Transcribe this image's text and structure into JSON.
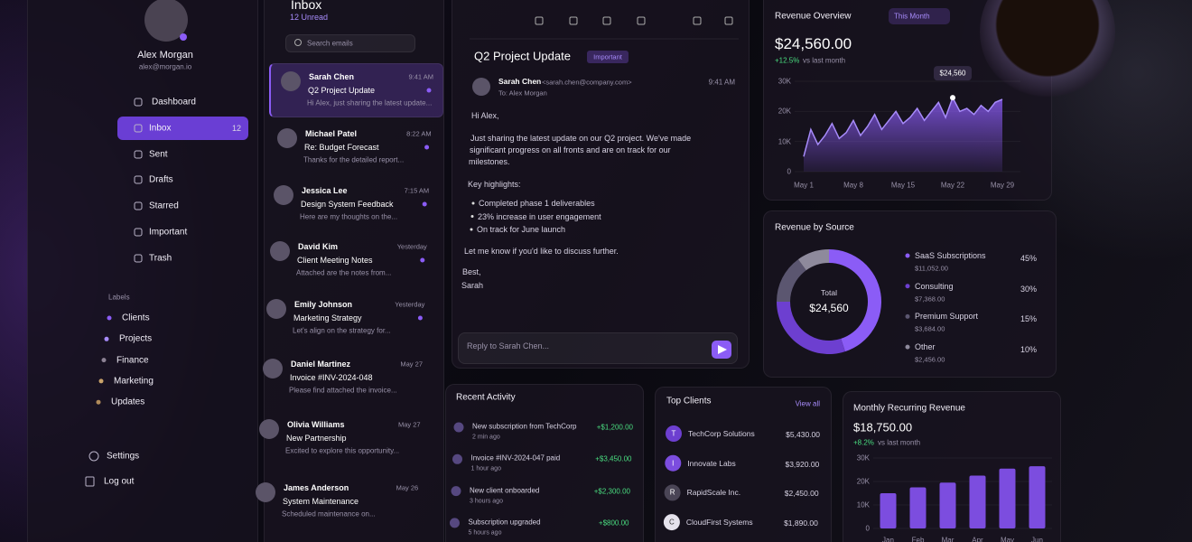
{
  "user": {
    "name": "Alex Morgan",
    "email": "alex@morgan.io"
  },
  "nav": [
    {
      "label": "Dashboard"
    },
    {
      "label": "Inbox",
      "badge": 12
    },
    {
      "label": "Sent"
    },
    {
      "label": "Drafts"
    },
    {
      "label": "Starred"
    },
    {
      "label": "Important"
    },
    {
      "label": "Trash"
    }
  ],
  "labels": {
    "title": "Labels",
    "items": [
      "Clients",
      "Projects",
      "Finance",
      "Marketing",
      "Updates"
    ],
    "colors": [
      "#8b5cf6",
      "#a78bfa",
      "#8c8294",
      "#c9a36a",
      "#b08a5a"
    ]
  },
  "account": [
    "Settings",
    "Log out"
  ],
  "inbox": {
    "title": "Inbox",
    "unread": "12 Unread",
    "search": "Search emails",
    "emails": [
      {
        "sender": "Sarah Chen",
        "time": "9:41 AM",
        "subject": "Q2 Project Update",
        "preview": "Hi Alex, just sharing the latest update...",
        "unread": true
      },
      {
        "sender": "Michael Patel",
        "time": "8:22 AM",
        "subject": "Re: Budget Forecast",
        "preview": "Thanks for the detailed report...",
        "unread": true
      },
      {
        "sender": "Jessica Lee",
        "time": "7:15 AM",
        "subject": "Design System Feedback",
        "preview": "Here are my thoughts on the...",
        "unread": true
      },
      {
        "sender": "David Kim",
        "time": "Yesterday",
        "subject": "Client Meeting Notes",
        "preview": "Attached are the notes from...",
        "unread": true
      },
      {
        "sender": "Emily Johnson",
        "time": "Yesterday",
        "subject": "Marketing Strategy",
        "preview": "Let's align on the strategy for...",
        "unread": true
      },
      {
        "sender": "Daniel Martinez",
        "time": "May 27",
        "subject": "Invoice #INV-2024-048",
        "preview": "Please find attached the invoice...",
        "unread": false
      },
      {
        "sender": "Olivia Williams",
        "time": "May 27",
        "subject": "New Partnership",
        "preview": "Excited to explore this opportunity...",
        "unread": false
      },
      {
        "sender": "James Anderson",
        "time": "May 26",
        "subject": "System Maintenance",
        "preview": "Scheduled maintenance on...",
        "unread": false
      }
    ]
  },
  "email": {
    "subject": "Q2 Project Update",
    "tag": "Important",
    "sender": "Sarah Chen",
    "address": "<sarah.chen@company.com>",
    "to": "To: Alex Morgan",
    "time": "9:41 AM",
    "greeting": "Hi Alex,",
    "paragraph": [
      "Just sharing the latest update on our Q2 project. We've made",
      "significant progress on all fronts and are on track for our",
      "milestones."
    ],
    "highlights_title": "Key highlights:",
    "highlights": [
      "Completed phase 1 deliverables",
      "23% increase in user engagement",
      "On track for June launch"
    ],
    "closing": "Let me know if you'd like to discuss further.",
    "signoff": "Best,",
    "signature": "Sarah",
    "reply": "Reply to Sarah Chen..."
  },
  "chart_data": [
    {
      "type": "line",
      "title": "Revenue Overview",
      "period": "This Month",
      "total": "$24,560.00",
      "change": "+12.5%",
      "change_note": "vs last month",
      "categories": [
        "May 1",
        null,
        null,
        null,
        null,
        null,
        null,
        "May 8",
        null,
        null,
        null,
        null,
        null,
        null,
        "May 15",
        null,
        null,
        null,
        null,
        null,
        null,
        "May 22",
        null,
        null,
        null,
        null,
        null,
        null,
        "May 29"
      ],
      "values": [
        5000,
        14000,
        9000,
        12000,
        16000,
        11000,
        13000,
        17000,
        12000,
        15000,
        19000,
        14000,
        17000,
        20000,
        16000,
        18000,
        21000,
        17000,
        20000,
        23000,
        18000,
        24560,
        20000,
        21000,
        19000,
        22000,
        20000,
        23000,
        24000
      ],
      "annotation": "$24,560",
      "color": "#8b5cf6",
      "ylim": [
        0,
        30000
      ],
      "yticks": [
        0,
        {
          "value": 10000,
          "label": "10K"
        },
        {
          "value": 20000,
          "label": "20K"
        },
        {
          "value": 30000,
          "label": "30K"
        }
      ],
      "grid": true
    },
    {
      "type": "pie",
      "title": "Revenue by Source",
      "center_label": "Total",
      "center_value": "$24,560",
      "categories": [
        "SaaS Subscriptions",
        "Consulting",
        "Premium Support",
        "Other"
      ],
      "values": [
        45,
        30,
        15,
        10
      ],
      "value_labels": [
        "45%",
        "30%",
        "15%",
        "10%"
      ],
      "amounts": [
        "$11,052.00",
        "$7,368.00",
        "$3,684.00",
        "$2,456.00"
      ],
      "colors": [
        "#8b5cf6",
        "#6d3fd0",
        "#5b5670",
        "#8e8a9c"
      ]
    },
    {
      "type": "bar",
      "title": "Monthly Recurring Revenue",
      "total": "$18,750.00",
      "change": "+8.2%",
      "change_note": "vs last month",
      "categories": [
        "Jan",
        "Feb",
        "Mar",
        "Apr",
        "May",
        "Jun"
      ],
      "values": [
        15000,
        17500,
        19500,
        22500,
        25500,
        26500
      ],
      "color": "#7c4ddf",
      "ylim": [
        0,
        30000
      ],
      "yticks": [
        0,
        {
          "value": 10000,
          "label": "10K"
        },
        {
          "value": 20000,
          "label": "20K"
        },
        {
          "value": 30000,
          "label": "30K"
        }
      ],
      "grid": true
    }
  ],
  "activity": {
    "title": "Recent Activity",
    "items": [
      {
        "title": "New subscription from TechCorp",
        "time": "2 min ago",
        "amount": "+$1,200.00"
      },
      {
        "title": "Invoice #INV-2024-047 paid",
        "time": "1 hour ago",
        "amount": "+$3,450.00"
      },
      {
        "title": "New client onboarded",
        "time": "3 hours ago",
        "amount": "+$2,300.00"
      },
      {
        "title": "Subscription upgraded",
        "time": "5 hours ago",
        "amount": "+$800.00"
      }
    ]
  },
  "clients": {
    "title": "Top Clients",
    "link": "View all",
    "items": [
      {
        "initial": "T",
        "name": "TechCorp Solutions",
        "amount": "$5,430.00"
      },
      {
        "initial": "I",
        "name": "Innovate Labs",
        "amount": "$3,920.00"
      },
      {
        "initial": "R",
        "name": "RapidScale Inc.",
        "amount": "$2,450.00"
      },
      {
        "initial": "C",
        "name": "CloudFirst Systems",
        "amount": "$1,890.00"
      }
    ]
  }
}
